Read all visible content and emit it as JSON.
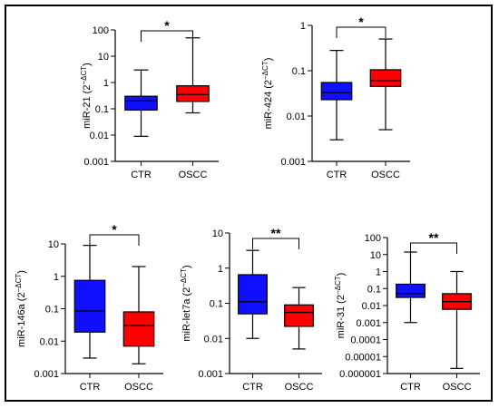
{
  "colors": {
    "CTR": "#1010ff",
    "OSCC": "#ff0000",
    "axis": "#000000"
  },
  "chart_data": [
    {
      "id": "mir21",
      "type": "boxplot",
      "ylabel": "miR-21 (2",
      "ylabel_sup": "−ΔCT",
      "yscale": "log",
      "ylim": [
        0.001,
        100
      ],
      "yticks": [
        0.001,
        0.01,
        0.1,
        1,
        10,
        100
      ],
      "ytick_labels": [
        "0.001",
        "0.01",
        "0.1",
        "1",
        "10",
        "100"
      ],
      "categories": [
        "CTR",
        "OSCC"
      ],
      "boxes": [
        {
          "name": "CTR",
          "min": 0.009,
          "q1": 0.09,
          "median": 0.2,
          "q3": 0.3,
          "max": 3
        },
        {
          "name": "OSCC",
          "min": 0.07,
          "q1": 0.19,
          "median": 0.35,
          "q3": 0.75,
          "max": 50
        }
      ],
      "significance": "*"
    },
    {
      "id": "mir424",
      "type": "boxplot",
      "ylabel": "miR-424 (2",
      "ylabel_sup": "−ΔCT",
      "yscale": "log",
      "ylim": [
        0.001,
        1
      ],
      "yticks": [
        0.001,
        0.01,
        0.1,
        1
      ],
      "ytick_labels": [
        "0.001",
        "0.01",
        "0.1",
        "1"
      ],
      "categories": [
        "CTR",
        "OSCC"
      ],
      "boxes": [
        {
          "name": "CTR",
          "min": 0.003,
          "q1": 0.023,
          "median": 0.033,
          "q3": 0.055,
          "max": 0.28
        },
        {
          "name": "OSCC",
          "min": 0.005,
          "q1": 0.045,
          "median": 0.06,
          "q3": 0.105,
          "max": 0.5
        }
      ],
      "significance": "*"
    },
    {
      "id": "mir146a",
      "type": "boxplot",
      "ylabel": "miR-146a (2",
      "ylabel_sup": "−ΔCT",
      "yscale": "log",
      "ylim": [
        0.001,
        10
      ],
      "yticks": [
        0.001,
        0.01,
        0.1,
        1,
        10
      ],
      "ytick_labels": [
        "0.001",
        "0.01",
        "0.1",
        "1",
        "10"
      ],
      "categories": [
        "CTR",
        "OSCC"
      ],
      "boxes": [
        {
          "name": "CTR",
          "min": 0.003,
          "q1": 0.019,
          "median": 0.085,
          "q3": 0.75,
          "max": 9
        },
        {
          "name": "OSCC",
          "min": 0.002,
          "q1": 0.007,
          "median": 0.03,
          "q3": 0.08,
          "max": 2
        }
      ],
      "significance": "*"
    },
    {
      "id": "mirlet7a",
      "type": "boxplot",
      "ylabel": "miR-let7a (2",
      "ylabel_sup": "−ΔCT",
      "yscale": "log",
      "ylim": [
        0.001,
        10
      ],
      "yticks": [
        0.001,
        0.01,
        0.1,
        1,
        10
      ],
      "ytick_labels": [
        "0.001",
        "0.01",
        "0.1",
        "1",
        "10"
      ],
      "categories": [
        "CTR",
        "OSCC"
      ],
      "boxes": [
        {
          "name": "CTR",
          "min": 0.01,
          "q1": 0.05,
          "median": 0.11,
          "q3": 0.65,
          "max": 3.2
        },
        {
          "name": "OSCC",
          "min": 0.005,
          "q1": 0.022,
          "median": 0.055,
          "q3": 0.09,
          "max": 0.28
        }
      ],
      "significance": "**"
    },
    {
      "id": "mir31",
      "type": "boxplot",
      "ylabel": "miR-31 (2",
      "ylabel_sup": "−ΔCT",
      "yscale": "log",
      "ylim": [
        1e-06,
        100
      ],
      "yticks": [
        1e-06,
        1e-05,
        0.0001,
        0.001,
        0.01,
        0.1,
        1,
        10,
        100
      ],
      "ytick_labels": [
        "0.000001",
        "0.00001",
        "0.0001",
        "0.001",
        "0.01",
        "0.1",
        "1",
        "10",
        "100"
      ],
      "categories": [
        "CTR",
        "OSCC"
      ],
      "boxes": [
        {
          "name": "CTR",
          "min": 0.001,
          "q1": 0.03,
          "median": 0.05,
          "q3": 0.18,
          "max": 14
        },
        {
          "name": "OSCC",
          "min": 2e-06,
          "q1": 0.006,
          "median": 0.017,
          "q3": 0.05,
          "max": 1
        }
      ],
      "significance": "**"
    }
  ]
}
